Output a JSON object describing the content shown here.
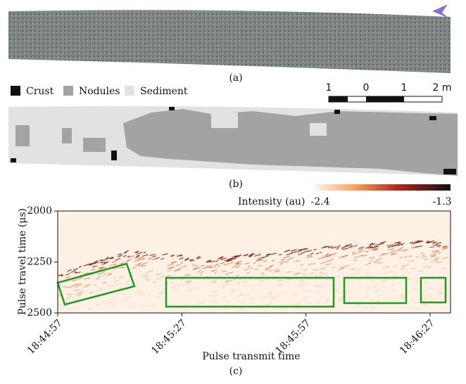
{
  "panel_a": {
    "caption": "(a)"
  },
  "legend": [
    {
      "label": "Crust",
      "color": "#111111"
    },
    {
      "label": "Nodules",
      "color": "#a3a3a3"
    },
    {
      "label": "Sediment",
      "color": "#e2e2e2"
    }
  ],
  "scale_bar": {
    "labels": [
      "1",
      "0",
      "1",
      "2 m"
    ]
  },
  "panel_b": {
    "caption": "(b)"
  },
  "colorbar": {
    "title": "Intensity (au)",
    "min": -2.4,
    "max": -1.3
  },
  "panel_c": {
    "caption": "(c)",
    "y_label": "Pulse travel time (μs)",
    "x_label": "Pulse transmit time",
    "ylim": [
      2000,
      2500
    ],
    "yticks": [
      2000,
      2250,
      2500
    ],
    "xticks": [
      "18:44:57",
      "18:45:27",
      "18:45:57",
      "18:46:27"
    ]
  }
}
